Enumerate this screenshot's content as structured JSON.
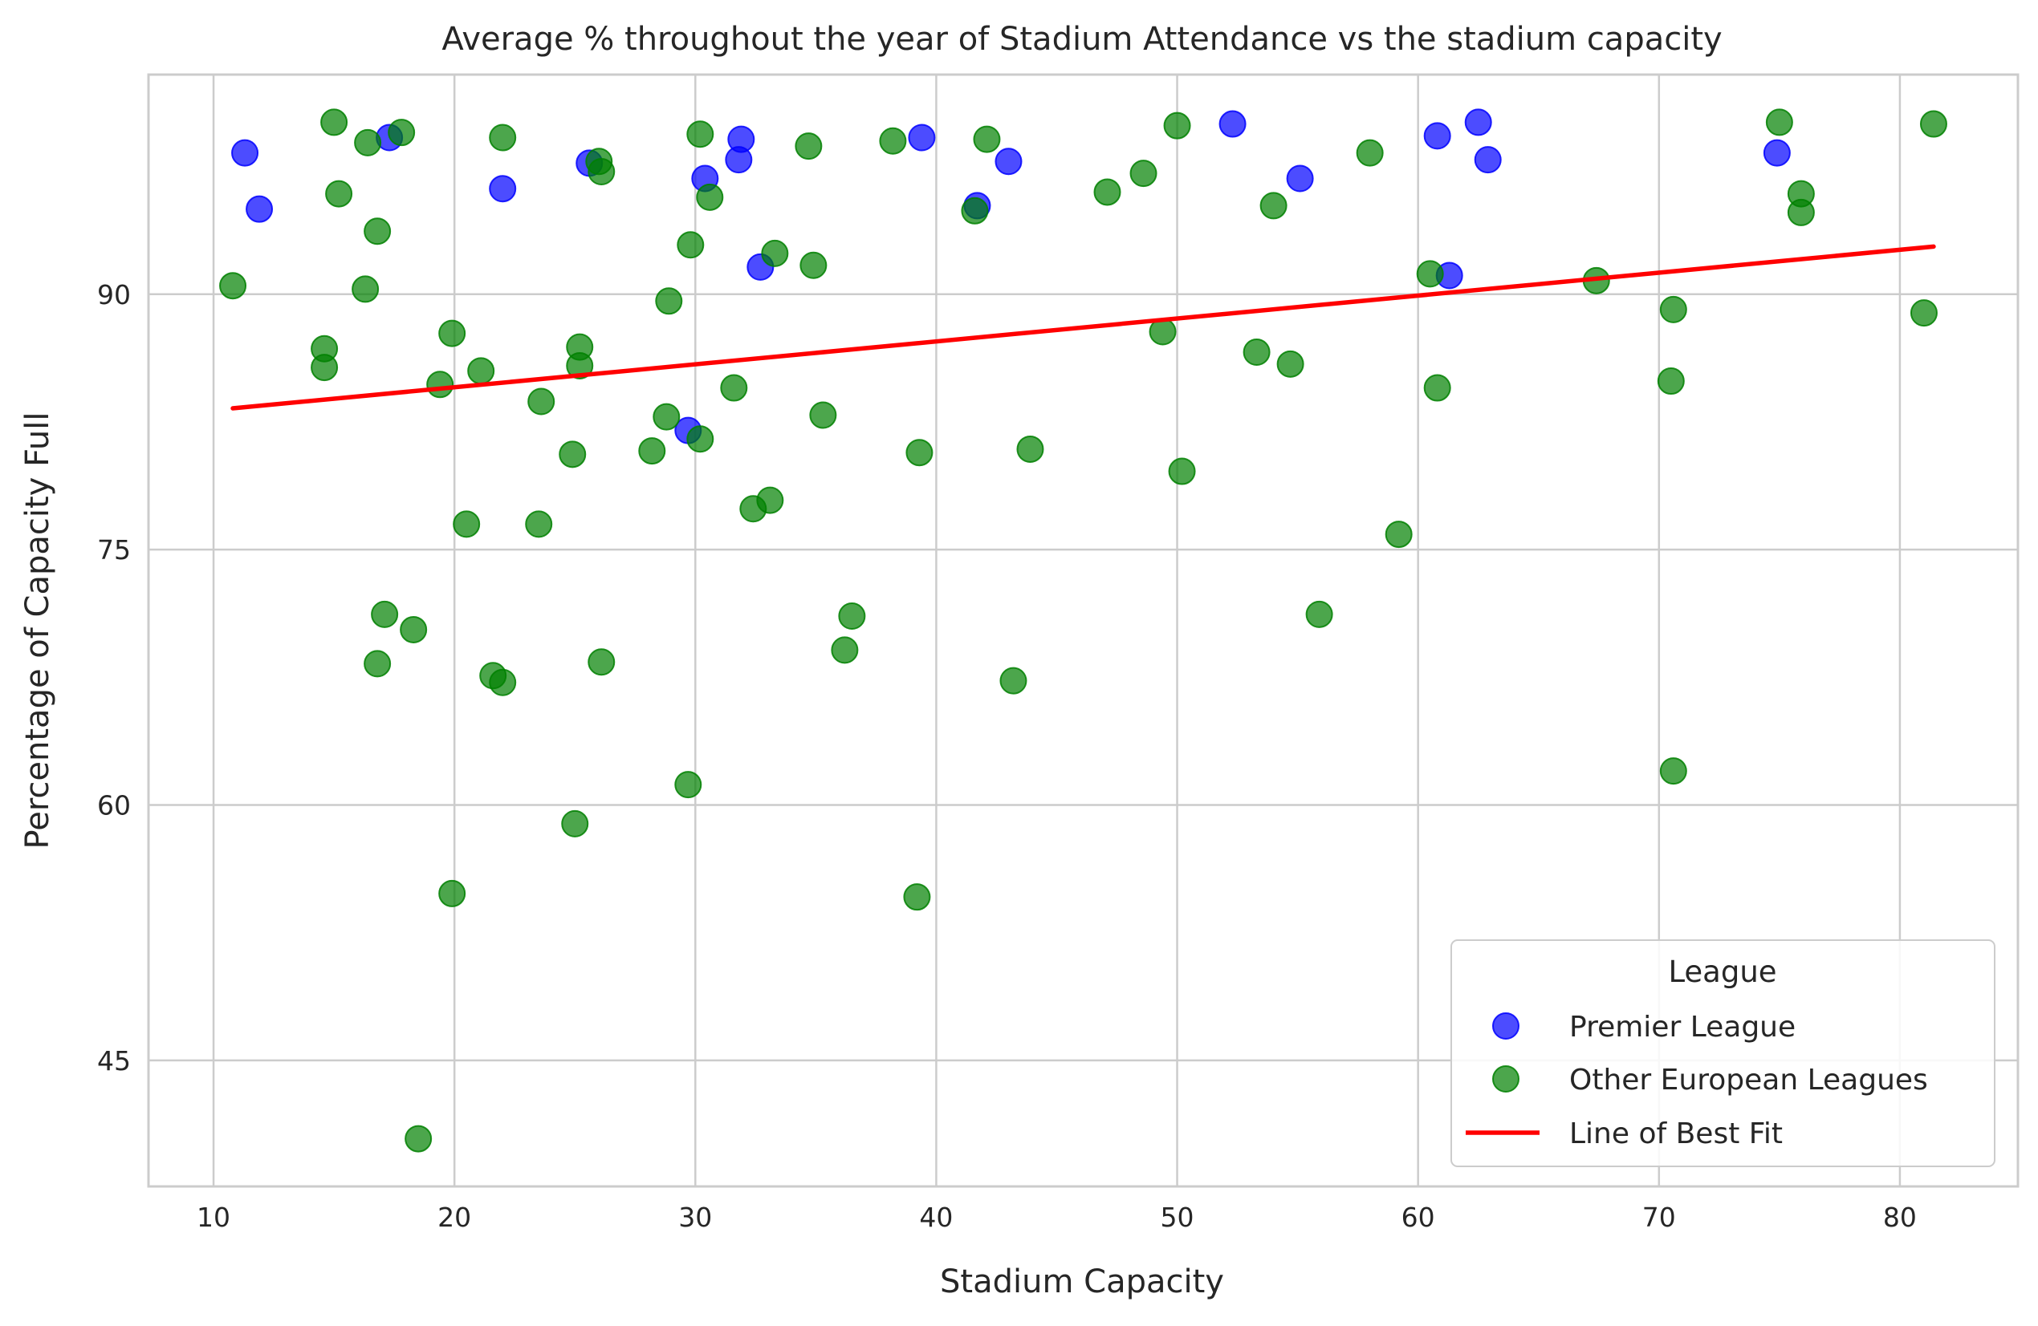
{
  "chart_data": {
    "type": "scatter",
    "title": "Average % throughout the year of Stadium Attendance vs the stadium capacity",
    "xlabel": "Stadium Capacity",
    "ylabel": "Percentage of Capacity Full",
    "xlim": [
      7.3,
      84.9
    ],
    "ylim": [
      37.6,
      102.9
    ],
    "xticks": [
      "10",
      "20",
      "30",
      "40",
      "50",
      "60",
      "70",
      "80"
    ],
    "yticks": [
      "45",
      "60",
      "75",
      "90"
    ],
    "grid": true,
    "legend_title": "League",
    "legend_position": "lower-right",
    "colors": {
      "premier": "#0000ff",
      "other": "#008000",
      "fit": "#ff0000"
    },
    "series": [
      {
        "name": "Premier League",
        "color": "#0000ff",
        "points": [
          [
            11.3,
            98.3
          ],
          [
            11.9,
            95.0
          ],
          [
            17.3,
            99.2
          ],
          [
            22.0,
            96.2
          ],
          [
            25.6,
            97.7
          ],
          [
            30.4,
            96.8
          ],
          [
            31.8,
            97.9
          ],
          [
            31.9,
            99.1
          ],
          [
            32.7,
            91.6
          ],
          [
            29.7,
            82.0
          ],
          [
            39.4,
            99.2
          ],
          [
            41.7,
            95.2
          ],
          [
            43.0,
            97.8
          ],
          [
            52.3,
            100.0
          ],
          [
            55.1,
            96.8
          ],
          [
            60.8,
            99.3
          ],
          [
            61.3,
            91.1
          ],
          [
            62.5,
            100.1
          ],
          [
            62.9,
            97.9
          ],
          [
            74.9,
            98.3
          ]
        ]
      },
      {
        "name": "Other European Leagues",
        "color": "#008000",
        "points": [
          [
            10.8,
            90.5
          ],
          [
            14.6,
            86.8
          ],
          [
            14.6,
            85.7
          ],
          [
            15.0,
            100.1
          ],
          [
            15.2,
            95.9
          ],
          [
            16.3,
            90.3
          ],
          [
            16.4,
            98.9
          ],
          [
            16.8,
            93.7
          ],
          [
            16.8,
            68.3
          ],
          [
            17.1,
            71.2
          ],
          [
            17.8,
            99.5
          ],
          [
            18.3,
            70.3
          ],
          [
            18.5,
            40.4
          ],
          [
            19.4,
            84.7
          ],
          [
            19.9,
            87.7
          ],
          [
            19.9,
            54.8
          ],
          [
            20.5,
            76.5
          ],
          [
            21.1,
            85.5
          ],
          [
            21.6,
            67.6
          ],
          [
            22.0,
            99.2
          ],
          [
            22.0,
            67.2
          ],
          [
            23.5,
            76.5
          ],
          [
            23.6,
            83.7
          ],
          [
            24.9,
            80.6
          ],
          [
            25.0,
            58.9
          ],
          [
            25.2,
            86.9
          ],
          [
            25.2,
            85.8
          ],
          [
            26.0,
            97.8
          ],
          [
            26.1,
            97.2
          ],
          [
            26.1,
            68.4
          ],
          [
            28.2,
            80.8
          ],
          [
            28.8,
            82.8
          ],
          [
            28.9,
            89.6
          ],
          [
            29.7,
            61.2
          ],
          [
            29.8,
            92.9
          ],
          [
            30.2,
            99.4
          ],
          [
            30.2,
            81.5
          ],
          [
            30.6,
            95.7
          ],
          [
            31.6,
            84.5
          ],
          [
            32.4,
            77.4
          ],
          [
            33.1,
            77.9
          ],
          [
            33.3,
            92.4
          ],
          [
            34.7,
            98.7
          ],
          [
            34.9,
            91.7
          ],
          [
            35.3,
            82.9
          ],
          [
            36.2,
            69.1
          ],
          [
            36.5,
            71.1
          ],
          [
            38.2,
            99.0
          ],
          [
            39.2,
            54.6
          ],
          [
            39.3,
            80.7
          ],
          [
            41.6,
            94.9
          ],
          [
            42.1,
            99.1
          ],
          [
            43.2,
            67.3
          ],
          [
            43.9,
            80.9
          ],
          [
            47.1,
            96.0
          ],
          [
            48.6,
            97.1
          ],
          [
            49.4,
            87.8
          ],
          [
            50.0,
            99.9
          ],
          [
            50.2,
            79.6
          ],
          [
            53.3,
            86.6
          ],
          [
            54.0,
            95.2
          ],
          [
            54.7,
            85.9
          ],
          [
            55.9,
            71.2
          ],
          [
            58.0,
            98.3
          ],
          [
            59.2,
            75.9
          ],
          [
            60.5,
            91.2
          ],
          [
            60.8,
            84.5
          ],
          [
            67.4,
            90.8
          ],
          [
            70.5,
            84.9
          ],
          [
            70.6,
            89.1
          ],
          [
            70.6,
            62.0
          ],
          [
            75.0,
            100.1
          ],
          [
            75.9,
            95.9
          ],
          [
            75.9,
            94.8
          ],
          [
            81.0,
            88.9
          ],
          [
            81.4,
            100.0
          ]
        ]
      },
      {
        "name": "Line of Best Fit",
        "color": "#ff0000",
        "line": [
          [
            10.8,
            83.3
          ],
          [
            81.4,
            92.8
          ]
        ]
      }
    ]
  }
}
